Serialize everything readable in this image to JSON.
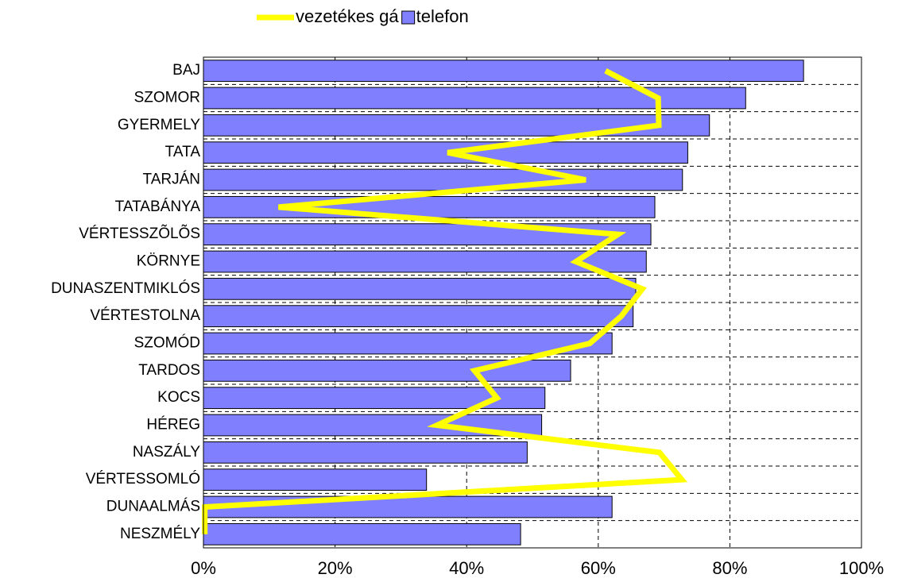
{
  "chart_data": {
    "type": "bar",
    "orientation": "horizontal",
    "categories": [
      "BAJ",
      "SZOMOR",
      "GYERMELY",
      "TATA",
      "TARJÁN",
      "TATABÁNYA",
      "VÉRTESSZÕLÕS",
      "KÖRNYE",
      "DUNASZENTMIKLÓS",
      "VÉRTESTOLNA",
      "SZOMÓD",
      "TARDOS",
      "KOCS",
      "HÉREG",
      "NASZÁLY",
      "VÉRTESSOMLÓ",
      "DUNAALMÁS",
      "NESZMÉLY"
    ],
    "series": [
      {
        "name": "vezetékes gá",
        "type": "line",
        "color": "#ffff00",
        "values": [
          61.1,
          69.1,
          69.2,
          37.1,
          58.1,
          11.4,
          63.0,
          56.6,
          66.7,
          63.5,
          58.7,
          41.2,
          44.6,
          35.5,
          69.3,
          72.7,
          0.2,
          0.2
        ]
      },
      {
        "name": "telefon",
        "type": "bar",
        "color": "#8080ff",
        "values": [
          91.2,
          82.4,
          76.9,
          73.6,
          72.8,
          68.6,
          68.0,
          67.3,
          65.7,
          65.3,
          62.1,
          55.8,
          51.9,
          51.4,
          49.2,
          33.9,
          62.1,
          48.2
        ]
      }
    ],
    "xlim": [
      0,
      100
    ],
    "xticks": [
      {
        "value": 0,
        "label": "0%"
      },
      {
        "value": 20,
        "label": "20%"
      },
      {
        "value": 40,
        "label": "40%"
      },
      {
        "value": 60,
        "label": "60%"
      },
      {
        "value": 80,
        "label": "80%"
      },
      {
        "value": 100,
        "label": "100%"
      }
    ],
    "grid": true,
    "legend": "top"
  }
}
